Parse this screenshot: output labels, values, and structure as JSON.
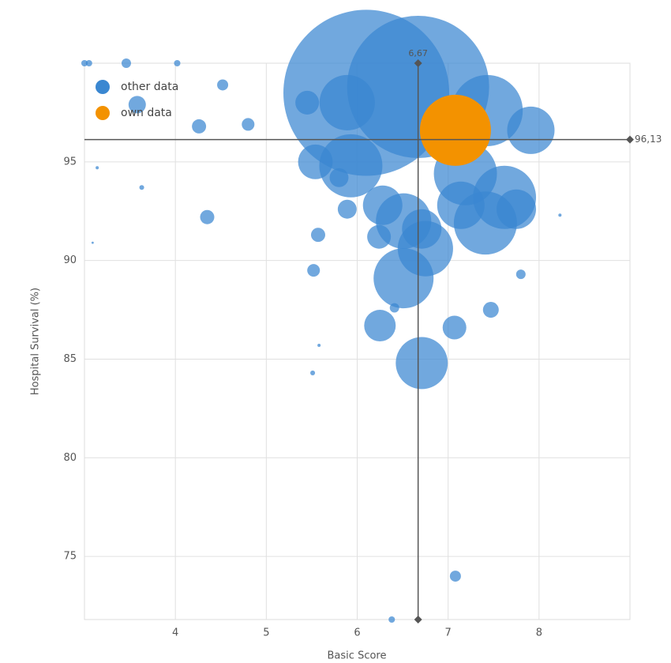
{
  "chart_data": {
    "type": "scatter",
    "x_label": "Basic Score",
    "y_label": "Hospital Survival (%)",
    "xlim": [
      3,
      9
    ],
    "ylim": [
      71.8,
      100
    ],
    "xticks": [
      4,
      5,
      6,
      7,
      8
    ],
    "yticks": [
      75,
      80,
      85,
      90,
      95
    ],
    "grid": true,
    "legend": "top-left",
    "reference_x": {
      "value": 6.67,
      "label": "6,67"
    },
    "reference_y": {
      "value": 96.13,
      "label": "96,13"
    },
    "series": [
      {
        "name": "other data",
        "color": "#3a87d1",
        "x": [
          6.1,
          6.67,
          7.43,
          7.91,
          7.41,
          7.62,
          7.75,
          6.51,
          6.75,
          6.51,
          6.71,
          6.25,
          7.07,
          7.47,
          7.8,
          8.23,
          7.08,
          6.38,
          5.57,
          5.52,
          5.51,
          5.58,
          6.41,
          4.35,
          4.26,
          4.8,
          4.52,
          3.58,
          3.63,
          3.14,
          3.09,
          3.0,
          3.05,
          3.46,
          4.02,
          5.54,
          5.89,
          5.93,
          5.8,
          5.89,
          6.28,
          7.19,
          7.14,
          5.45,
          6.24,
          6.71
        ],
        "values": [
          98.5,
          98.8,
          97.6,
          96.6,
          91.9,
          93.2,
          92.6,
          92.0,
          90.6,
          89.1,
          84.8,
          86.7,
          86.6,
          87.5,
          89.3,
          92.3,
          74.0,
          71.8,
          91.3,
          89.5,
          84.3,
          85.7,
          87.6,
          92.2,
          96.8,
          96.9,
          98.9,
          97.9,
          93.7,
          94.7,
          90.9,
          100,
          100,
          100,
          100,
          95.0,
          98.0,
          94.8,
          94.2,
          92.6,
          92.8,
          94.4,
          92.8,
          98.0,
          91.2,
          91.6
        ],
        "sizes": [
          1077,
          791,
          198,
          88,
          156,
          156,
          61,
          120,
          120,
          141,
          106,
          39,
          22,
          9.8,
          3.5,
          0.4,
          4.8,
          1.6,
          7.9,
          6.3,
          0.9,
          0.4,
          3.5,
          7.9,
          7.9,
          6.3,
          4.8,
          11.8,
          0.9,
          0.4,
          0.2,
          1.6,
          1.6,
          3.5,
          1.6,
          47,
          120,
          156,
          14,
          14,
          61,
          156,
          88,
          22,
          22,
          61
        ]
      },
      {
        "name": "own data",
        "color": "#f39200",
        "x": [
          7.08
        ],
        "values": [
          96.6
        ],
        "sizes": [
          198
        ]
      }
    ]
  }
}
